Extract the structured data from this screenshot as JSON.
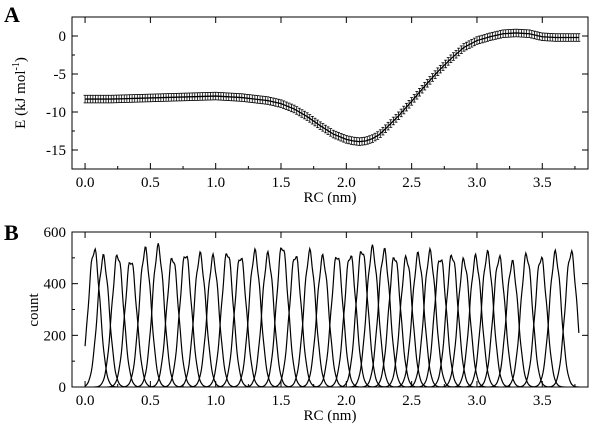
{
  "chart_data": [
    {
      "panel": "A",
      "type": "line",
      "xlabel": "RC (nm)",
      "ylabel": "E (kJ mol",
      "ylabel_sup": "-1",
      "ylabel_close": ")",
      "xlim": [
        -0.1,
        3.85
      ],
      "ylim": [
        -17.5,
        2.5
      ],
      "xticks": [
        0.0,
        0.5,
        1.0,
        1.5,
        2.0,
        2.5,
        3.0,
        3.5
      ],
      "xtick_labels": [
        "0.0",
        "0.5",
        "1.0",
        "1.5",
        "2.0",
        "2.5",
        "3.0",
        "3.5"
      ],
      "yticks": [
        0,
        -5,
        -10,
        -15
      ],
      "ytick_labels": [
        "0",
        "-5",
        "-10",
        "-15"
      ],
      "error_bars": true,
      "error": 0.5,
      "series": [
        {
          "x": [
            0.0,
            0.2,
            0.4,
            0.6,
            0.8,
            1.0,
            1.2,
            1.4,
            1.5,
            1.6,
            1.7,
            1.8,
            1.9,
            2.0,
            2.05,
            2.1,
            2.15,
            2.2,
            2.25,
            2.3,
            2.4,
            2.5,
            2.6,
            2.7,
            2.8,
            2.9,
            3.0,
            3.1,
            3.2,
            3.3,
            3.4,
            3.5,
            3.6,
            3.7,
            3.78
          ],
          "y": [
            -8.3,
            -8.3,
            -8.2,
            -8.1,
            -8.0,
            -7.9,
            -8.1,
            -8.5,
            -8.9,
            -9.6,
            -10.6,
            -11.8,
            -12.9,
            -13.6,
            -13.8,
            -13.9,
            -13.8,
            -13.5,
            -13.0,
            -12.2,
            -10.5,
            -8.6,
            -6.6,
            -4.7,
            -3.0,
            -1.5,
            -0.6,
            -0.1,
            0.3,
            0.4,
            0.3,
            -0.1,
            -0.2,
            -0.2,
            -0.2
          ]
        }
      ]
    },
    {
      "panel": "B",
      "type": "line",
      "xlabel": "RC (nm)",
      "ylabel": "count",
      "xlim": [
        -0.1,
        3.85
      ],
      "ylim": [
        0,
        600
      ],
      "xticks": [
        0.0,
        0.5,
        1.0,
        1.5,
        2.0,
        2.5,
        3.0,
        3.5
      ],
      "xtick_labels": [
        "0.0",
        "0.5",
        "1.0",
        "1.5",
        "2.0",
        "2.5",
        "3.0",
        "3.5"
      ],
      "yticks": [
        0,
        200,
        400,
        600
      ],
      "ytick_labels": [
        "0",
        "200",
        "400",
        "600"
      ],
      "histograms": {
        "centers": [
          0.07,
          0.14,
          0.25,
          0.35,
          0.46,
          0.56,
          0.67,
          0.77,
          0.88,
          0.98,
          1.09,
          1.19,
          1.3,
          1.4,
          1.51,
          1.61,
          1.72,
          1.82,
          1.93,
          2.03,
          2.12,
          2.2,
          2.29,
          2.37,
          2.46,
          2.55,
          2.64,
          2.72,
          2.81,
          2.9,
          2.99,
          3.08,
          3.17,
          3.27,
          3.38,
          3.49,
          3.6,
          3.72
        ],
        "peaks": [
          530,
          500,
          510,
          490,
          530,
          540,
          500,
          515,
          510,
          500,
          520,
          505,
          520,
          510,
          545,
          510,
          520,
          500,
          510,
          510,
          530,
          535,
          525,
          505,
          500,
          510,
          520,
          500,
          510,
          490,
          500,
          515,
          500,
          480,
          510,
          500,
          515,
          520
        ],
        "width": 0.045
      }
    }
  ]
}
